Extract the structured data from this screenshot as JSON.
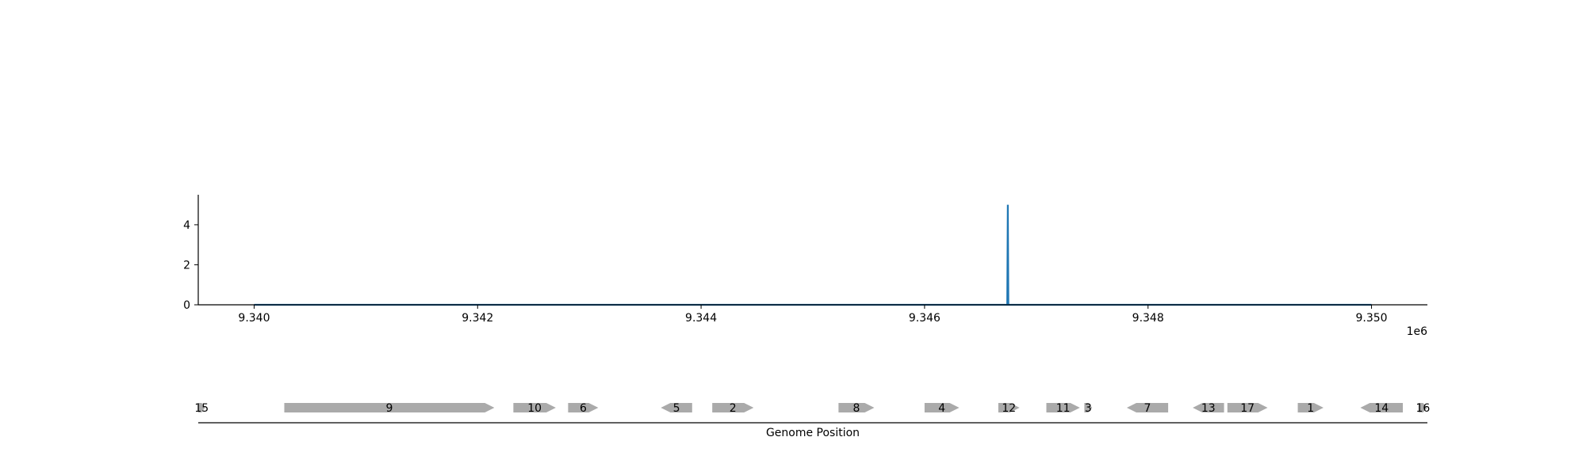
{
  "chart_data": [
    {
      "type": "line",
      "x_scale_label": "1e6",
      "x_ticks": [
        {
          "value": 9340000,
          "label": "9.340"
        },
        {
          "value": 9342000,
          "label": "9.342"
        },
        {
          "value": 9344000,
          "label": "9.344"
        },
        {
          "value": 9346000,
          "label": "9.346"
        },
        {
          "value": 9348000,
          "label": "9.348"
        },
        {
          "value": 9350000,
          "label": "9.350"
        }
      ],
      "y_ticks": [
        {
          "value": 0,
          "label": "0"
        },
        {
          "value": 2,
          "label": "2"
        },
        {
          "value": 4,
          "label": "4"
        }
      ],
      "xlim": [
        9339500,
        9350500
      ],
      "ylim": [
        0,
        5.5
      ],
      "series": [
        {
          "color": "#1f77b4",
          "points": [
            [
              9340000,
              0
            ],
            [
              9346740,
              0
            ],
            [
              9346745,
              5
            ],
            [
              9346750,
              0
            ],
            [
              9350000,
              0
            ]
          ]
        }
      ],
      "grid": false
    },
    {
      "type": "gene-map",
      "xlabel": "Genome Position",
      "xlim": [
        9339500,
        9350500
      ],
      "color": "#aaaaaa",
      "genes": [
        {
          "label": "15",
          "start": 9339500,
          "end": 9339560,
          "strand": "+"
        },
        {
          "label": "9",
          "start": 9340270,
          "end": 9342150,
          "strand": "+"
        },
        {
          "label": "10",
          "start": 9342320,
          "end": 9342700,
          "strand": "+"
        },
        {
          "label": "6",
          "start": 9342810,
          "end": 9343080,
          "strand": "+"
        },
        {
          "label": "5",
          "start": 9343640,
          "end": 9343920,
          "strand": "-"
        },
        {
          "label": "2",
          "start": 9344100,
          "end": 9344470,
          "strand": "+"
        },
        {
          "label": "8",
          "start": 9345230,
          "end": 9345550,
          "strand": "+"
        },
        {
          "label": "4",
          "start": 9346000,
          "end": 9346310,
          "strand": "+"
        },
        {
          "label": "12",
          "start": 9346660,
          "end": 9346850,
          "strand": "+"
        },
        {
          "label": "11",
          "start": 9347090,
          "end": 9347390,
          "strand": "+"
        },
        {
          "label": "3",
          "start": 9347430,
          "end": 9347500,
          "strand": "+"
        },
        {
          "label": "7",
          "start": 9347810,
          "end": 9348180,
          "strand": "-"
        },
        {
          "label": "13",
          "start": 9348400,
          "end": 9348680,
          "strand": "-"
        },
        {
          "label": "17",
          "start": 9348710,
          "end": 9349070,
          "strand": "+"
        },
        {
          "label": "1",
          "start": 9349340,
          "end": 9349570,
          "strand": "+"
        },
        {
          "label": "14",
          "start": 9349900,
          "end": 9350280,
          "strand": "-"
        },
        {
          "label": "16",
          "start": 9350420,
          "end": 9350500,
          "strand": "+"
        }
      ]
    }
  ]
}
